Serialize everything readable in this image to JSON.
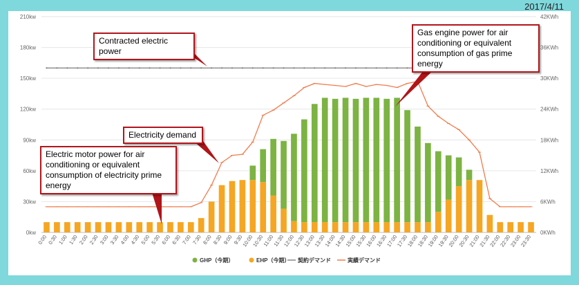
{
  "header": {
    "date": "2017/4/11"
  },
  "annotations": {
    "contracted": "Contracted electric power",
    "gas": "Gas engine power for air conditioning or equivalent consumption of gas prime energy",
    "demand": "Electricity demand",
    "motor": "Electric motor power for air conditioning or equivalent consumption of electricity prime energy"
  },
  "colors": {
    "ghp": "#7cb342",
    "ehp": "#f5a623",
    "contract": "#888888",
    "actual": "#f07b4b",
    "callout_border": "#b0151a",
    "background": "#7fd8dc"
  },
  "chart_data": {
    "type": "bar",
    "stacked": true,
    "categories": [
      "0:00",
      "0:30",
      "1:00",
      "1:30",
      "2:00",
      "2:30",
      "3:00",
      "3:30",
      "4:00",
      "4:30",
      "5:00",
      "5:30",
      "6:00",
      "6:30",
      "7:00",
      "7:30",
      "8:00",
      "8:30",
      "9:00",
      "9:30",
      "10:00",
      "10:30",
      "11:00",
      "11:30",
      "12:00",
      "12:30",
      "13:00",
      "13:30",
      "14:00",
      "14:30",
      "15:00",
      "15:30",
      "16:00",
      "16:30",
      "17:00",
      "17:30",
      "18:00",
      "18:30",
      "19:00",
      "19:30",
      "20:00",
      "20:30",
      "21:00",
      "21:30",
      "22:00",
      "22:30",
      "23:00",
      "23:30"
    ],
    "y_left": {
      "ticks": [
        "0kw",
        "30kw",
        "60kw",
        "90kw",
        "120kw",
        "150kw",
        "180kw",
        "210kw"
      ],
      "range": [
        0,
        210
      ]
    },
    "y_right": {
      "ticks": [
        "0KWh",
        "6KWh",
        "12KWh",
        "18KWh",
        "24KWh",
        "30KWh",
        "36KWh",
        "42KWh"
      ],
      "range": [
        0,
        42
      ]
    },
    "series": [
      {
        "name": "GHP（今期）",
        "kind": "bar",
        "values": [
          0,
          0,
          0,
          0,
          0,
          0,
          0,
          0,
          0,
          0,
          0,
          0,
          0,
          0,
          0,
          0,
          0,
          0,
          0,
          0,
          14,
          32,
          55,
          66,
          85,
          100,
          115,
          121,
          120,
          121,
          120,
          121,
          121,
          120,
          121,
          109,
          93,
          77,
          59,
          43,
          28,
          10,
          0,
          0,
          0,
          0,
          0,
          0
        ]
      },
      {
        "name": "EHP（今期）",
        "kind": "bar",
        "values": [
          10,
          10,
          10,
          10,
          10,
          10,
          10,
          10,
          10,
          10,
          10,
          10,
          10,
          10,
          10,
          14,
          30,
          46,
          50,
          51,
          51,
          49,
          36,
          23,
          11,
          10,
          10,
          10,
          10,
          10,
          10,
          10,
          10,
          10,
          10,
          10,
          10,
          10,
          20,
          32,
          45,
          51,
          51,
          17,
          10,
          10,
          10,
          10
        ]
      },
      {
        "name": "契約デマンド",
        "kind": "line",
        "values": [
          160,
          160,
          160,
          160,
          160,
          160,
          160,
          160,
          160,
          160,
          160,
          160,
          160,
          160,
          160,
          160,
          160,
          160,
          160,
          160,
          160,
          160,
          160,
          160,
          160,
          160,
          160,
          160,
          160,
          160,
          160,
          160,
          160,
          160,
          160,
          160,
          160,
          160,
          160,
          160,
          160,
          160,
          160,
          160,
          160,
          160,
          160,
          160
        ]
      },
      {
        "name": "実績デマンド",
        "kind": "line",
        "values": [
          25,
          25,
          25,
          25,
          25,
          25,
          25,
          25,
          25,
          25,
          25,
          25,
          25,
          25,
          25,
          29,
          46,
          68,
          75,
          76,
          88,
          114,
          119,
          126,
          133,
          141,
          145,
          144,
          143,
          142,
          145,
          142,
          144,
          143,
          141,
          145,
          147,
          123,
          113,
          106,
          100,
          90,
          78,
          33,
          25,
          25,
          25,
          25
        ]
      }
    ],
    "legend_position": "bottom",
    "grid": true
  }
}
